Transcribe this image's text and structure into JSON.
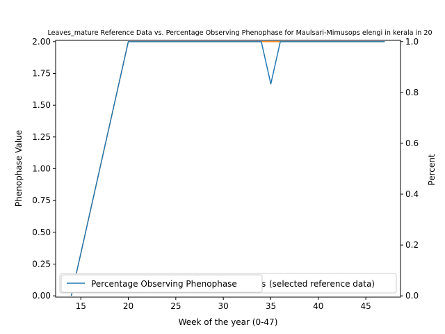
{
  "chart_data": {
    "type": "line",
    "title": "Leaves_mature Reference Data vs. Percentage Observing Phenophase for Maulsari-Mimusops elengi in kerala in 20",
    "xlabel": "Week of the year (0-47)",
    "ylabel_left": "Phenophase Value",
    "ylabel_right": "Percent",
    "xlim": [
      12.35,
      48.65
    ],
    "ylim_left": [
      -0.01,
      2.01
    ],
    "ylim_right": [
      -0.005,
      1.005
    ],
    "x_ticks": [
      "15",
      "20",
      "25",
      "30",
      "35",
      "40",
      "45"
    ],
    "y_ticks_left": [
      "0.00",
      "0.25",
      "0.50",
      "0.75",
      "1.00",
      "1.25",
      "1.50",
      "1.75",
      "2.00"
    ],
    "y_ticks_right": [
      "0.0",
      "0.2",
      "0.4",
      "0.6",
      "0.8",
      "1.0"
    ],
    "grid": false,
    "legend_position": "lower-left",
    "series": [
      {
        "name": "Percentage Observing Phenophase",
        "axis": "left",
        "color": "#1f77b4",
        "x": [
          14,
          20,
          34,
          35,
          36,
          47
        ],
        "y": [
          0.0,
          2.0,
          2.0,
          1.667,
          2.0,
          2.0
        ]
      },
      {
        "name": "(selected reference data)",
        "axis": "right",
        "color": "#ff7f0e",
        "x": [
          14,
          20,
          34,
          35,
          36,
          47
        ],
        "y": [
          0.0,
          1.0,
          1.0,
          1.0,
          1.0,
          1.0
        ]
      }
    ],
    "legend_overlap_text": "s"
  }
}
